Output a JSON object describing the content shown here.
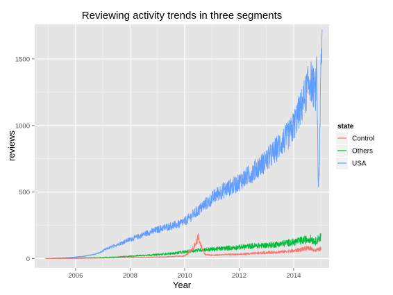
{
  "chart_data": {
    "type": "line",
    "title": "Reviewing activity trends in three segments",
    "xlabel": "Year",
    "ylabel": "reviews",
    "xlim": [
      2004.5,
      2015.3
    ],
    "ylim": [
      -70,
      1760
    ],
    "x_ticks": [
      "2006",
      "2008",
      "2010",
      "2012",
      "2014"
    ],
    "y_ticks": [
      "0",
      "500",
      "1000",
      "1500"
    ],
    "grid": true,
    "legend": {
      "title": "state",
      "position": "right"
    },
    "series": [
      {
        "name": "Control",
        "color": "#F8766D",
        "x": [
          2004.9,
          2005.5,
          2006.0,
          2006.5,
          2007.0,
          2007.5,
          2008.0,
          2008.5,
          2009.0,
          2009.5,
          2010.0,
          2010.25,
          2010.4,
          2010.5,
          2010.6,
          2010.75,
          2011.0,
          2011.5,
          2012.0,
          2012.5,
          2013.0,
          2013.5,
          2014.0,
          2014.3,
          2014.6,
          2014.8,
          2015.0
        ],
        "y": [
          0,
          1,
          2,
          3,
          4,
          6,
          8,
          10,
          12,
          15,
          20,
          60,
          110,
          160,
          100,
          30,
          25,
          30,
          32,
          38,
          45,
          50,
          58,
          70,
          80,
          60,
          75
        ]
      },
      {
        "name": "Others",
        "color": "#00BA38",
        "x": [
          2004.9,
          2005.5,
          2006.0,
          2006.5,
          2007.0,
          2007.5,
          2008.0,
          2008.5,
          2009.0,
          2009.5,
          2010.0,
          2010.5,
          2011.0,
          2011.5,
          2012.0,
          2012.5,
          2013.0,
          2013.5,
          2014.0,
          2014.3,
          2014.6,
          2014.8,
          2015.0
        ],
        "y": [
          0,
          2,
          4,
          6,
          8,
          12,
          18,
          25,
          30,
          38,
          50,
          65,
          70,
          78,
          85,
          95,
          100,
          110,
          125,
          135,
          150,
          130,
          165
        ]
      },
      {
        "name": "USA",
        "color": "#619CFF",
        "x": [
          2004.9,
          2005.2,
          2005.5,
          2005.8,
          2006.0,
          2006.3,
          2006.6,
          2006.9,
          2007.1,
          2007.4,
          2007.7,
          2008.0,
          2008.3,
          2008.6,
          2008.9,
          2009.2,
          2009.5,
          2009.8,
          2010.0,
          2010.15,
          2010.3,
          2010.5,
          2010.7,
          2010.9,
          2011.1,
          2011.3,
          2011.5,
          2011.7,
          2011.9,
          2012.1,
          2012.3,
          2012.5,
          2012.7,
          2012.9,
          2013.1,
          2013.3,
          2013.5,
          2013.7,
          2013.9,
          2014.1,
          2014.3,
          2014.5,
          2014.6,
          2014.7,
          2014.8,
          2014.85,
          2014.9,
          2014.95,
          2015.0,
          2015.05
        ],
        "y": [
          0,
          2,
          5,
          8,
          12,
          18,
          28,
          45,
          70,
          95,
          120,
          145,
          165,
          190,
          210,
          230,
          245,
          260,
          280,
          300,
          330,
          360,
          400,
          430,
          470,
          500,
          520,
          540,
          560,
          590,
          620,
          650,
          690,
          720,
          760,
          800,
          860,
          900,
          950,
          1050,
          1150,
          1280,
          1350,
          1300,
          1250,
          1400,
          550,
          750,
          1450,
          1680
        ]
      }
    ]
  }
}
